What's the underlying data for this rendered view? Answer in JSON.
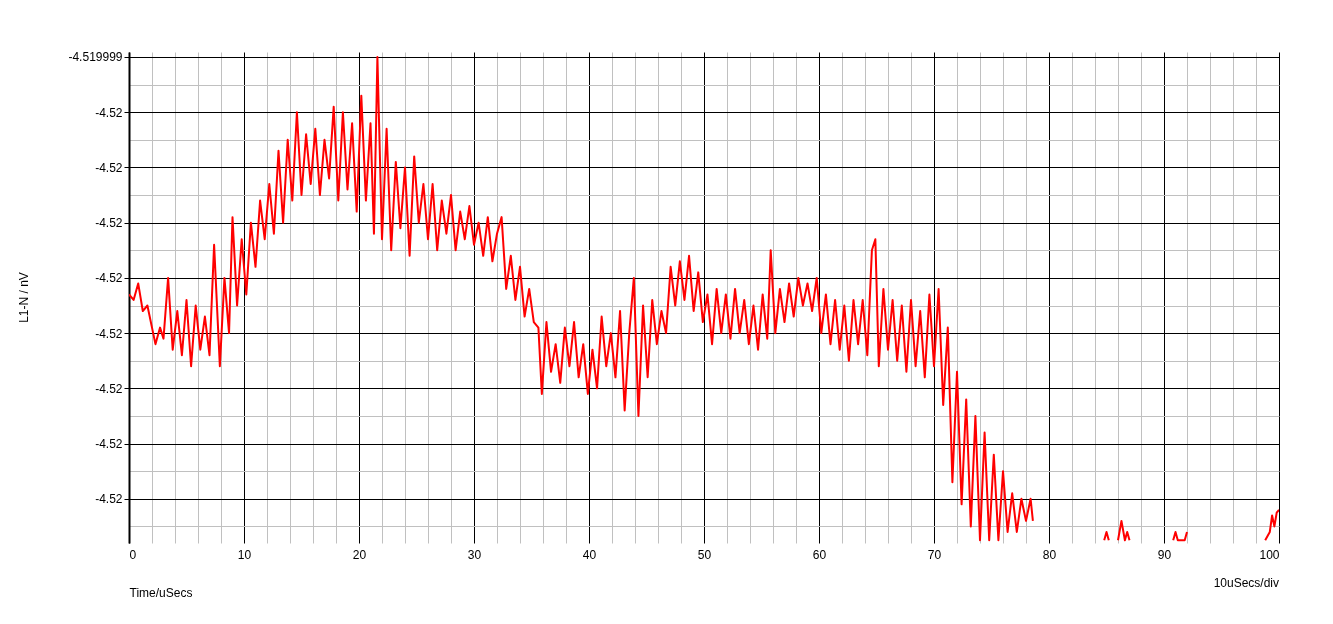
{
  "chart_data": {
    "type": "line",
    "xlabel": "Time/uSecs",
    "ylabel": "L1-N / nV",
    "annotations": [
      "10uSecs/div"
    ],
    "xlim": [
      0,
      100
    ],
    "ylim": [
      -4.51999988,
      -4.519998991
    ],
    "grid": true,
    "xticks": [
      0,
      {
        "value": 2,
        "label": null
      },
      {
        "value": 4,
        "label": null
      },
      {
        "value": 6,
        "label": null
      },
      {
        "value": 8,
        "label": null
      },
      10,
      {
        "value": 12,
        "label": null
      },
      {
        "value": 14,
        "label": null
      },
      {
        "value": 16,
        "label": null
      },
      {
        "value": 18,
        "label": null
      },
      20,
      {
        "value": 22,
        "label": null
      },
      {
        "value": 24,
        "label": null
      },
      {
        "value": 26,
        "label": null
      },
      {
        "value": 28,
        "label": null
      },
      30,
      {
        "value": 32,
        "label": null
      },
      {
        "value": 34,
        "label": null
      },
      {
        "value": 36,
        "label": null
      },
      {
        "value": 38,
        "label": null
      },
      40,
      {
        "value": 42,
        "label": null
      },
      {
        "value": 44,
        "label": null
      },
      {
        "value": 46,
        "label": null
      },
      {
        "value": 48,
        "label": null
      },
      50,
      {
        "value": 52,
        "label": null
      },
      {
        "value": 54,
        "label": null
      },
      {
        "value": 56,
        "label": null
      },
      {
        "value": 58,
        "label": null
      },
      60,
      {
        "value": 62,
        "label": null
      },
      {
        "value": 64,
        "label": null
      },
      {
        "value": 66,
        "label": null
      },
      {
        "value": 68,
        "label": null
      },
      70,
      {
        "value": 72,
        "label": null
      },
      {
        "value": 74,
        "label": null
      },
      {
        "value": 76,
        "label": null
      },
      {
        "value": 78,
        "label": null
      },
      80,
      {
        "value": 82,
        "label": null
      },
      {
        "value": 84,
        "label": null
      },
      {
        "value": 86,
        "label": null
      },
      {
        "value": 88,
        "label": null
      },
      90,
      {
        "value": 92,
        "label": null
      },
      {
        "value": 94,
        "label": null
      },
      {
        "value": 96,
        "label": null
      },
      {
        "value": 98,
        "label": null
      },
      100
    ],
    "yticks": [
      -4.519999,
      {
        "value": -4.51999905,
        "label": null
      },
      {
        "value": -4.5199991,
        "label": "-4.52"
      },
      {
        "value": -4.51999915,
        "label": null
      },
      {
        "value": -4.5199992,
        "label": "-4.52"
      },
      {
        "value": -4.51999925,
        "label": null
      },
      {
        "value": -4.5199993,
        "label": "-4.52"
      },
      {
        "value": -4.51999935,
        "label": null
      },
      {
        "value": -4.5199994,
        "label": "-4.52"
      },
      {
        "value": -4.51999945,
        "label": null
      },
      {
        "value": -4.5199995,
        "label": "-4.52"
      },
      {
        "value": -4.51999955,
        "label": null
      },
      {
        "value": -4.5199996,
        "label": "-4.52"
      },
      {
        "value": -4.51999965,
        "label": null
      },
      {
        "value": -4.5199997,
        "label": "-4.52"
      },
      {
        "value": -4.51999975,
        "label": null
      },
      {
        "value": -4.5199998,
        "label": "-4.52"
      },
      {
        "value": -4.51999985,
        "label": null
      }
    ],
    "x": [
      0,
      0.4,
      0.8,
      1.2,
      1.6,
      2.0,
      2.3,
      2.7,
      3.0,
      3.4,
      3.8,
      4.2,
      4.6,
      5.0,
      5.4,
      5.8,
      6.2,
      6.6,
      7.0,
      7.4,
      7.9,
      8.3,
      8.7,
      9.0,
      9.4,
      9.8,
      10.2,
      10.6,
      11.0,
      11.4,
      11.8,
      12.2,
      12.6,
      13.0,
      13.4,
      13.8,
      14.2,
      14.6,
      15.0,
      15.4,
      15.8,
      16.2,
      16.6,
      17.0,
      17.4,
      17.8,
      18.2,
      18.6,
      19.0,
      19.4,
      19.8,
      20.2,
      20.6,
      21.0,
      21.3,
      21.6,
      22.0,
      22.4,
      22.8,
      23.2,
      23.6,
      24.0,
      24.4,
      24.8,
      25.2,
      25.6,
      26.0,
      26.4,
      26.8,
      27.2,
      27.6,
      28.0,
      28.4,
      28.8,
      29.2,
      29.6,
      30.0,
      30.4,
      30.8,
      31.2,
      31.6,
      32.0,
      32.4,
      32.8,
      33.2,
      33.6,
      34.0,
      34.4,
      34.8,
      35.2,
      35.6,
      35.9,
      36.3,
      36.7,
      37.1,
      37.5,
      37.9,
      38.3,
      38.7,
      39.1,
      39.5,
      39.9,
      40.3,
      40.7,
      41.1,
      41.5,
      41.9,
      42.3,
      42.7,
      43.1,
      43.5,
      43.9,
      44.3,
      44.7,
      45.1,
      45.5,
      45.9,
      46.3,
      46.7,
      47.1,
      47.5,
      47.9,
      48.3,
      48.7,
      49.1,
      49.5,
      49.9,
      50.3,
      50.7,
      51.1,
      51.5,
      51.9,
      52.3,
      52.7,
      53.1,
      53.5,
      53.9,
      54.3,
      54.7,
      55.1,
      55.5,
      55.8,
      56.2,
      56.6,
      57.0,
      57.4,
      57.8,
      58.2,
      58.6,
      59.0,
      59.4,
      59.8,
      60.2,
      60.6,
      61.0,
      61.4,
      61.8,
      62.2,
      62.6,
      63.0,
      63.4,
      63.8,
      64.2,
      64.6,
      64.9,
      65.2,
      65.6,
      66.0,
      66.4,
      66.8,
      67.2,
      67.6,
      68.0,
      68.4,
      68.8,
      69.2,
      69.6,
      70.0,
      70.4,
      70.8,
      71.2,
      71.6,
      72.0,
      72.4,
      72.8,
      73.2,
      73.6,
      74.0,
      74.4,
      74.8,
      75.2,
      75.6,
      76.0,
      76.4,
      76.8,
      77.2,
      77.6,
      78.0,
      78.4,
      78.6,
      79.0,
      84.8,
      85.0,
      85.2,
      85.6,
      86.0,
      86.3,
      86.6,
      86.8,
      87.0,
      87.5,
      90.8,
      91.0,
      91.2,
      91.8,
      92.0,
      92.5,
      98.8,
      99.2,
      99.4,
      99.6,
      99.8,
      100
    ],
    "series": [
      {
        "color": "#ff0000",
        "values": [
          -4.51999943,
          -4.51999944,
          -4.51999941,
          -4.51999946,
          -4.51999945,
          -4.51999949,
          -4.51999952,
          -4.51999949,
          -4.51999951,
          -4.5199994,
          -4.51999953,
          -4.51999946,
          -4.51999954,
          -4.51999944,
          -4.51999956,
          -4.51999945,
          -4.51999953,
          -4.51999947,
          -4.51999954,
          -4.51999934,
          -4.51999956,
          -4.5199994,
          -4.5199995,
          -4.51999929,
          -4.51999945,
          -4.51999933,
          -4.51999943,
          -4.5199993,
          -4.51999938,
          -4.51999926,
          -4.51999933,
          -4.51999923,
          -4.51999932,
          -4.51999917,
          -4.5199993,
          -4.51999915,
          -4.51999926,
          -4.5199991,
          -4.51999925,
          -4.51999914,
          -4.51999923,
          -4.51999913,
          -4.51999925,
          -4.51999915,
          -4.51999922,
          -4.51999909,
          -4.51999926,
          -4.5199991,
          -4.51999924,
          -4.51999912,
          -4.51999928,
          -4.51999907,
          -4.51999926,
          -4.51999912,
          -4.51999932,
          -4.519999,
          -4.51999933,
          -4.51999913,
          -4.51999935,
          -4.51999919,
          -4.51999931,
          -4.5199992,
          -4.51999936,
          -4.51999918,
          -4.5199993,
          -4.51999923,
          -4.51999933,
          -4.51999923,
          -4.51999935,
          -4.51999926,
          -4.51999932,
          -4.51999925,
          -4.51999935,
          -4.51999928,
          -4.51999933,
          -4.51999927,
          -4.51999934,
          -4.5199993,
          -4.51999936,
          -4.51999929,
          -4.51999937,
          -4.51999932,
          -4.51999929,
          -4.51999942,
          -4.51999936,
          -4.51999944,
          -4.51999938,
          -4.51999947,
          -4.51999942,
          -4.51999948,
          -4.51999949,
          -4.51999961,
          -4.51999948,
          -4.51999957,
          -4.51999952,
          -4.51999959,
          -4.51999949,
          -4.51999956,
          -4.51999948,
          -4.51999958,
          -4.51999952,
          -4.51999961,
          -4.51999953,
          -4.5199996,
          -4.51999947,
          -4.51999956,
          -4.5199995,
          -4.51999958,
          -4.51999946,
          -4.51999964,
          -4.5199995,
          -4.5199994,
          -4.51999965,
          -4.51999945,
          -4.51999958,
          -4.51999944,
          -4.51999952,
          -4.51999946,
          -4.5199995,
          -4.51999938,
          -4.51999945,
          -4.51999937,
          -4.51999944,
          -4.51999936,
          -4.51999946,
          -4.51999939,
          -4.51999948,
          -4.51999943,
          -4.51999952,
          -4.51999942,
          -4.5199995,
          -4.51999943,
          -4.51999951,
          -4.51999942,
          -4.5199995,
          -4.51999944,
          -4.51999952,
          -4.51999945,
          -4.51999953,
          -4.51999943,
          -4.51999951,
          -4.51999935,
          -4.5199995,
          -4.51999942,
          -4.51999948,
          -4.51999941,
          -4.51999947,
          -4.5199994,
          -4.51999945,
          -4.51999941,
          -4.51999946,
          -4.5199994,
          -4.5199995,
          -4.51999943,
          -4.51999952,
          -4.51999944,
          -4.51999953,
          -4.51999945,
          -4.51999955,
          -4.51999944,
          -4.51999952,
          -4.51999944,
          -4.51999954,
          -4.51999935,
          -4.51999933,
          -4.51999956,
          -4.51999942,
          -4.51999953,
          -4.51999944,
          -4.51999955,
          -4.51999945,
          -4.51999957,
          -4.51999944,
          -4.51999956,
          -4.51999946,
          -4.51999958,
          -4.51999943,
          -4.51999956,
          -4.51999942,
          -4.51999963,
          -4.51999949,
          -4.51999977,
          -4.51999957,
          -4.51999981,
          -4.51999962,
          -4.51999985,
          -4.51999965,
          -4.519999875,
          -4.51999968,
          -4.519999875,
          -4.51999972,
          -4.519999875,
          -4.51999975,
          -4.51999986,
          -4.51999979,
          -4.51999986,
          -4.5199998,
          -4.51999984,
          -4.5199998,
          -4.51999984,
          null,
          -4.519999875,
          -4.51999986,
          -4.519999875,
          null,
          -4.519999875,
          -4.51999984,
          -4.519999875,
          -4.51999986,
          -4.519999875,
          null,
          -4.519999875,
          -4.51999986,
          -4.519999875,
          -4.519999875,
          -4.51999986,
          null,
          -4.519999875,
          -4.51999986,
          -4.51999983,
          -4.51999985,
          -4.519999825,
          -4.51999982
        ]
      }
    ]
  }
}
